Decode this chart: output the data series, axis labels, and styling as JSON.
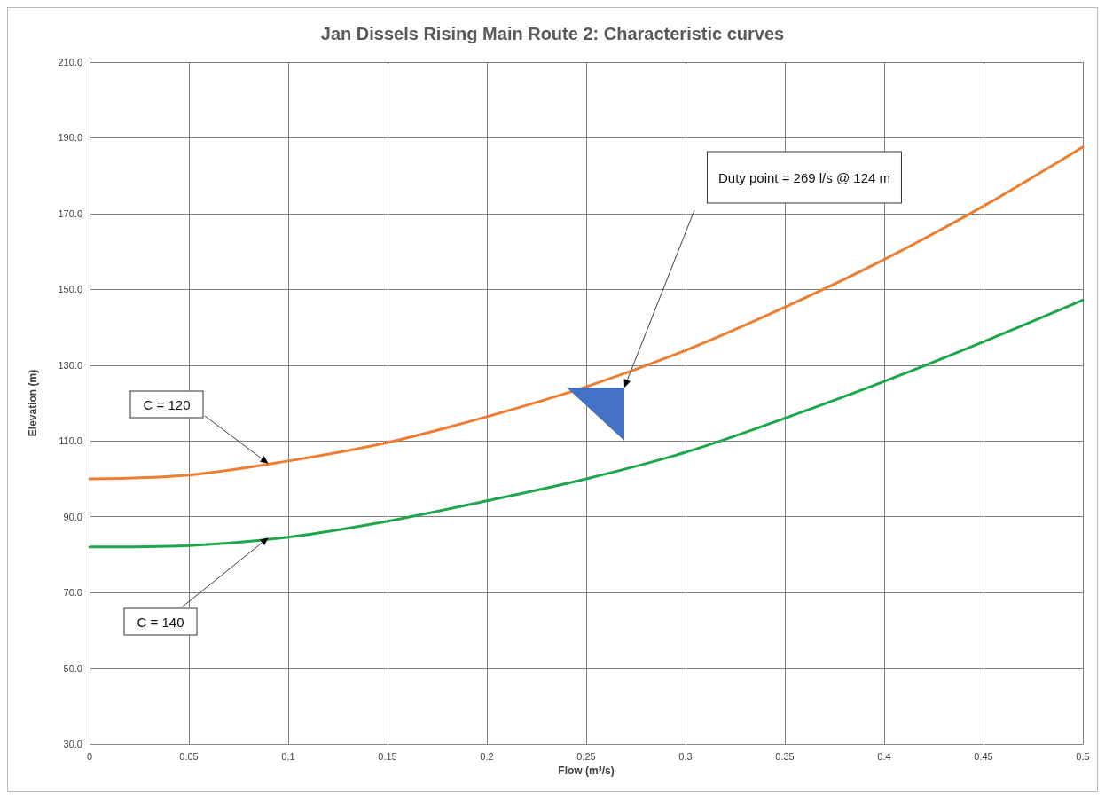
{
  "chart_data": {
    "type": "line",
    "title": "Jan Dissels Rising Main Route 2: Characteristic curves",
    "xlabel": "Flow (m³/s)",
    "ylabel": "Elevation (m)",
    "x": [
      0,
      0.05,
      0.1,
      0.15,
      0.2,
      0.25,
      0.3,
      0.35,
      0.4,
      0.45,
      0.5
    ],
    "series": [
      {
        "color": "#ed7d31",
        "values": [
          100,
          101,
          104.7,
          109.6,
          116.4,
          124.3,
          133.9,
          145.3,
          157.9,
          172,
          187.6
        ]
      },
      {
        "color": "#1fa64a",
        "values": [
          82,
          82.4,
          84.6,
          88.8,
          94.2,
          100,
          107,
          116,
          125.7,
          136.2,
          147.2
        ]
      }
    ],
    "xlim": [
      0,
      0.5
    ],
    "xticks": [
      0,
      0.05,
      0.1,
      0.15,
      0.2,
      0.25,
      0.3,
      0.35,
      0.4,
      0.45,
      0.5
    ],
    "ylim": [
      30,
      210
    ],
    "yticks": [
      {
        "value": 30,
        "label": "30.0"
      },
      {
        "value": 50,
        "label": "50.0"
      },
      {
        "value": 70,
        "label": "70.0"
      },
      {
        "value": 90,
        "label": "90.0"
      },
      {
        "value": 110,
        "label": "110.0"
      },
      {
        "value": 130,
        "label": "130.0"
      },
      {
        "value": 150,
        "label": "150.0"
      },
      {
        "value": 170,
        "label": "170.0"
      },
      {
        "value": 190,
        "label": "190.0"
      },
      {
        "value": 210,
        "label": "210.0"
      }
    ],
    "grid": true,
    "line_style": "solid",
    "annotations": [
      {
        "text": "C = 120",
        "x": 0.09,
        "y": 104
      },
      {
        "text": "C = 140",
        "x": 0.09,
        "y": 84.5
      },
      "Duty point = 269 l/s @ 124 m"
    ]
  }
}
